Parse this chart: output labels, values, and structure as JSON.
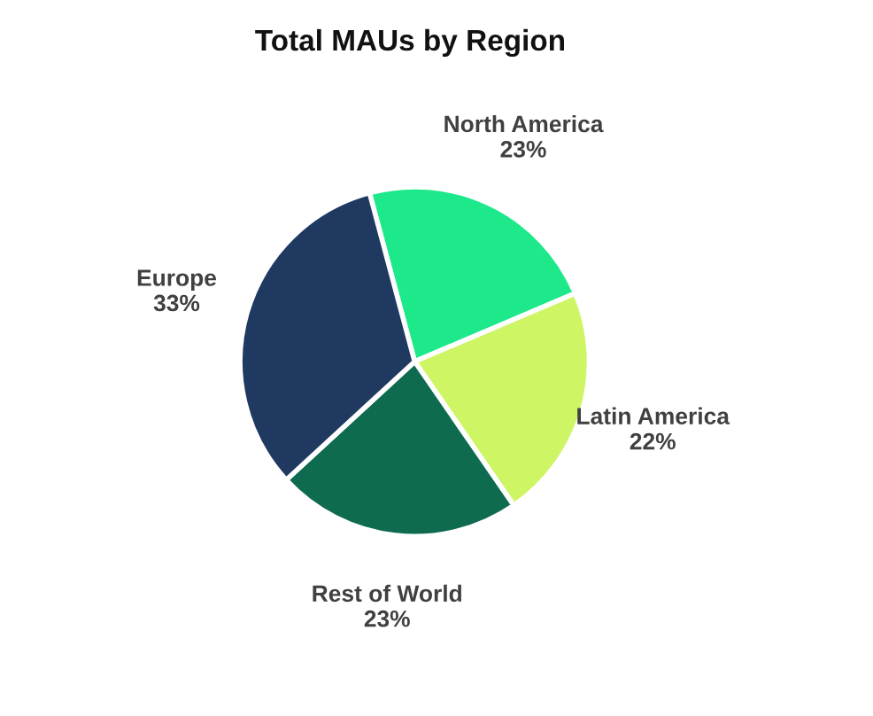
{
  "chart_data": {
    "type": "pie",
    "title": "Total MAUs by Region",
    "categories": [
      "North America",
      "Latin America",
      "Rest of World",
      "Europe"
    ],
    "values": [
      23,
      22,
      23,
      33
    ],
    "value_labels": [
      "23%",
      "22%",
      "23%",
      "33%"
    ],
    "colors": [
      "#1de98b",
      "#cdf564",
      "#0e6b4f",
      "#1f3961"
    ]
  }
}
